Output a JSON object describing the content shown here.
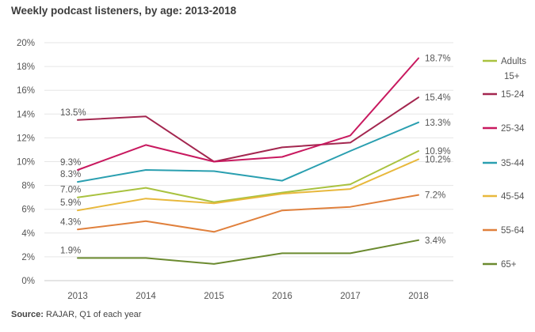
{
  "title": "Weekly podcast listeners, by age: 2013-2018",
  "source": {
    "label": "Source:",
    "text": " RAJAR, Q1 of each year"
  },
  "chart_data": {
    "type": "line",
    "title": "Weekly podcast listeners, by age: 2013-2018",
    "xlabel": "",
    "ylabel": "",
    "x": [
      "2013",
      "2014",
      "2015",
      "2016",
      "2017",
      "2018"
    ],
    "ylim": [
      0,
      20
    ],
    "yticks": [
      "0%",
      "2%",
      "4%",
      "6%",
      "8%",
      "10%",
      "12%",
      "14%",
      "16%",
      "18%",
      "20%"
    ],
    "grid": "horizontal",
    "legend_position": "right",
    "series": [
      {
        "name": "Adults 15+",
        "legend_lines": [
          "Adults",
          "15+"
        ],
        "color": "#a9c23f",
        "values": [
          7.0,
          7.8,
          6.6,
          7.4,
          8.1,
          10.9
        ],
        "first_label": "7.0%",
        "last_label": "10.9%"
      },
      {
        "name": "15-24",
        "legend_lines": [
          "15-24"
        ],
        "color": "#a3264f",
        "values": [
          13.5,
          13.8,
          10.0,
          11.2,
          11.6,
          15.4
        ],
        "first_label": "13.5%",
        "last_label": "15.4%"
      },
      {
        "name": "25-34",
        "legend_lines": [
          "25-34"
        ],
        "color": "#c8195f",
        "values": [
          9.3,
          11.4,
          10.0,
          10.4,
          12.2,
          18.7
        ],
        "first_label": "9.3%",
        "last_label": "18.7%"
      },
      {
        "name": "35-44",
        "legend_lines": [
          "35-44"
        ],
        "color": "#2a9fb0",
        "values": [
          8.3,
          9.3,
          9.2,
          8.4,
          10.9,
          13.3
        ],
        "first_label": "8.3%",
        "last_label": "13.3%"
      },
      {
        "name": "45-54",
        "legend_lines": [
          "45-54"
        ],
        "color": "#e8b83c",
        "values": [
          5.9,
          6.9,
          6.5,
          7.3,
          7.7,
          10.2
        ],
        "first_label": "5.9%",
        "last_label": "10.2%"
      },
      {
        "name": "55-64",
        "legend_lines": [
          "55-64"
        ],
        "color": "#e0803c",
        "values": [
          4.3,
          5.0,
          4.1,
          5.9,
          6.2,
          7.2
        ],
        "first_label": "4.3%",
        "last_label": "7.2%"
      },
      {
        "name": "65+",
        "legend_lines": [
          "65+"
        ],
        "color": "#6b8a2f",
        "values": [
          1.9,
          1.9,
          1.4,
          2.3,
          2.3,
          3.4
        ],
        "first_label": "1.9%",
        "last_label": "3.4%"
      }
    ]
  }
}
